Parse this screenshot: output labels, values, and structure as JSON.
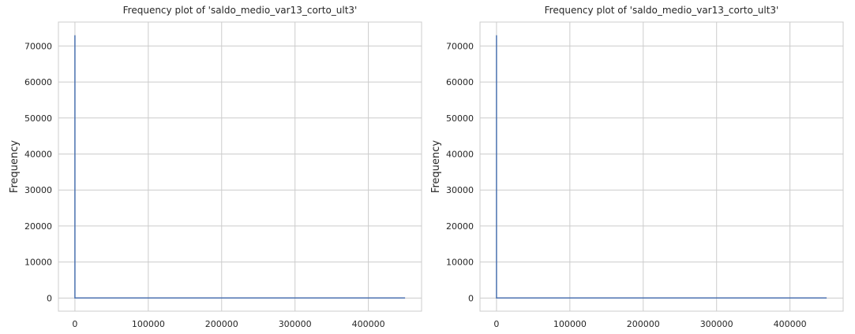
{
  "chart_data": [
    {
      "type": "line",
      "title": "Frequency plot of 'saldo_medio_var13_corto_ult3'",
      "xlabel": "",
      "ylabel": "Frequency",
      "xlim": [
        -22500,
        472500
      ],
      "ylim": [
        -3650,
        76650
      ],
      "xticks": [
        0,
        100000,
        200000,
        300000,
        400000
      ],
      "xtick_labels": [
        "0",
        "100000",
        "200000",
        "300000",
        "400000"
      ],
      "yticks": [
        0,
        10000,
        20000,
        30000,
        40000,
        50000,
        60000,
        70000
      ],
      "ytick_labels": [
        "0",
        "10000",
        "20000",
        "30000",
        "40000",
        "50000",
        "60000",
        "70000"
      ],
      "grid": true,
      "line_color": "#4c72b0",
      "series": [
        {
          "x": [
            0,
            0,
            450000
          ],
          "y": [
            73000,
            0,
            0
          ]
        }
      ]
    },
    {
      "type": "line",
      "title": "Frequency plot of 'saldo_medio_var13_corto_ult3'",
      "xlabel": "",
      "ylabel": "Frequency",
      "xlim": [
        -22500,
        472500
      ],
      "ylim": [
        -3650,
        76650
      ],
      "xticks": [
        0,
        100000,
        200000,
        300000,
        400000
      ],
      "xtick_labels": [
        "0",
        "100000",
        "200000",
        "300000",
        "400000"
      ],
      "yticks": [
        0,
        10000,
        20000,
        30000,
        40000,
        50000,
        60000,
        70000
      ],
      "ytick_labels": [
        "0",
        "10000",
        "20000",
        "30000",
        "40000",
        "50000",
        "60000",
        "70000"
      ],
      "grid": true,
      "line_color": "#4c72b0",
      "series": [
        {
          "x": [
            0,
            0,
            450000
          ],
          "y": [
            73000,
            0,
            0
          ]
        }
      ]
    }
  ]
}
